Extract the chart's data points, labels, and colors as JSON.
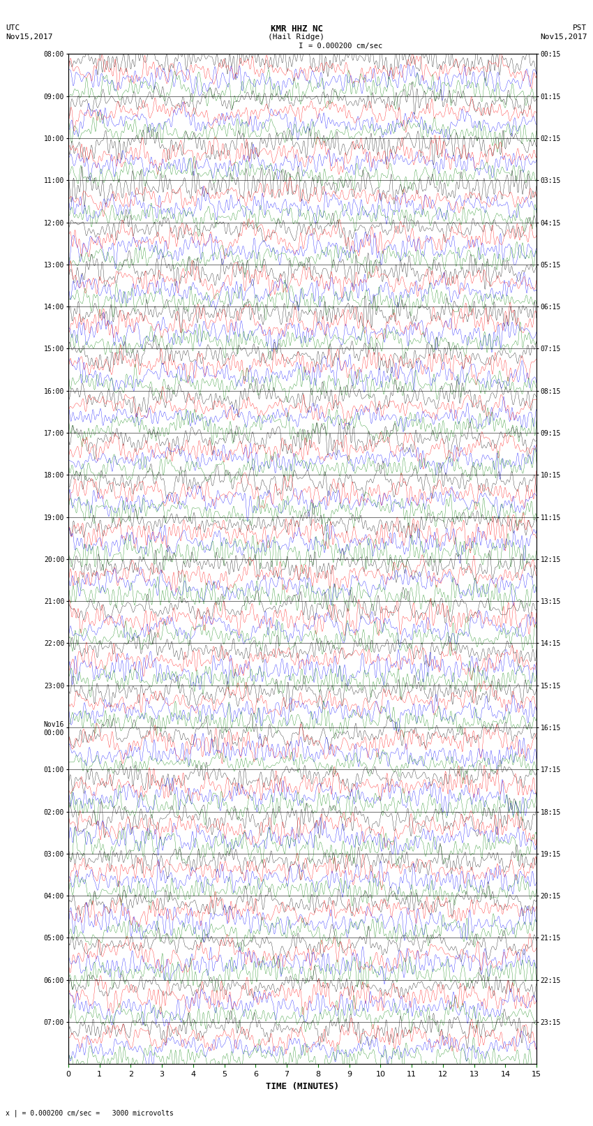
{
  "title_line1": "KMR HHZ NC",
  "title_line2": "(Hail Ridge)",
  "scale_text": "= 0.000200 cm/sec",
  "scale_marker": "I",
  "left_label_line1": "UTC",
  "left_label_line2": "Nov15,2017",
  "right_label_line1": "PST",
  "right_label_line2": "Nov15,2017",
  "bottom_label": "TIME (MINUTES)",
  "bottom_note": "x | = 0.000200 cm/sec =   3000 microvolts",
  "utc_times_left": [
    "08:00",
    "09:00",
    "10:00",
    "11:00",
    "12:00",
    "13:00",
    "14:00",
    "15:00",
    "16:00",
    "17:00",
    "18:00",
    "19:00",
    "20:00",
    "21:00",
    "22:00",
    "23:00",
    "Nov16\n00:00",
    "01:00",
    "02:00",
    "03:00",
    "04:00",
    "05:00",
    "06:00",
    "07:00"
  ],
  "pst_times_right": [
    "00:15",
    "01:15",
    "02:15",
    "03:15",
    "04:15",
    "05:15",
    "06:15",
    "07:15",
    "08:15",
    "09:15",
    "10:15",
    "11:15",
    "12:15",
    "13:15",
    "14:15",
    "15:15",
    "16:15",
    "17:15",
    "18:15",
    "19:15",
    "20:15",
    "21:15",
    "22:15",
    "23:15"
  ],
  "n_rows": 24,
  "traces_per_row": 4,
  "minutes_per_row": 15,
  "colors": [
    "black",
    "red",
    "blue",
    "green"
  ],
  "bg_color": "white",
  "fig_width": 8.5,
  "fig_height": 16.13,
  "dpi": 100,
  "x_ticks": [
    0,
    1,
    2,
    3,
    4,
    5,
    6,
    7,
    8,
    9,
    10,
    11,
    12,
    13,
    14,
    15
  ],
  "x_tick_color": "green",
  "samples_per_trace": 9000,
  "trace_amplitude": 0.48,
  "linewidth": 0.25
}
